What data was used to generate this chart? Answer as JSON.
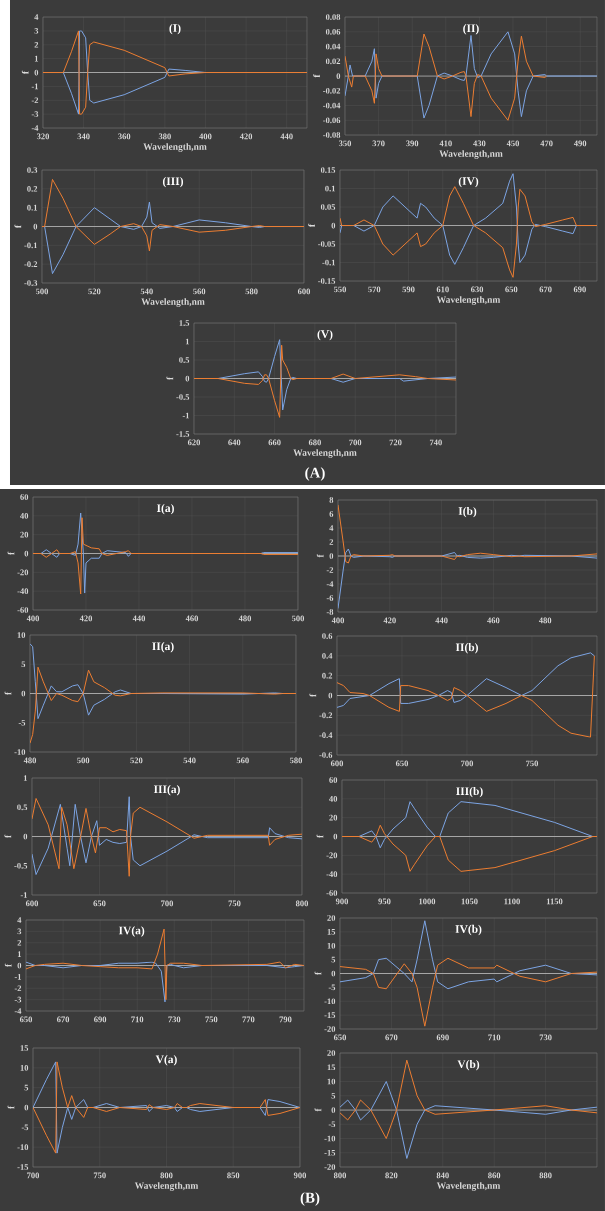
{
  "chart_data": [
    {
      "type": "line",
      "title": "(I)",
      "xlabel": "Wavelength,nm",
      "ylabel": "f",
      "xlim": [
        320,
        450
      ],
      "ylim": [
        -4,
        4
      ],
      "xticks": [
        320,
        340,
        360,
        380,
        400,
        420,
        440
      ],
      "yticks": [
        -4,
        -3,
        -2,
        -1,
        0,
        1,
        2,
        3,
        4
      ],
      "grid": true,
      "ref_lines": [
        {
          "axis": "y",
          "value": 0,
          "color": "#bfbfbf"
        }
      ],
      "series": [
        {
          "color": "#7ca5e4",
          "x": [
            320,
            330,
            334,
            337.5,
            338,
            339,
            341,
            342,
            343,
            345,
            360,
            380,
            382,
            390,
            400,
            450
          ],
          "values": [
            0,
            0,
            -1.5,
            -3,
            3,
            3,
            2.5,
            0,
            -2,
            -2.2,
            -1.6,
            -0.35,
            0.25,
            0.15,
            0,
            0
          ]
        },
        {
          "color": "#ed7d31",
          "x": [
            320,
            330,
            334,
            337.5,
            338,
            339,
            341,
            342,
            343,
            345,
            360,
            380,
            382,
            390,
            400,
            450
          ],
          "values": [
            0,
            0,
            1.5,
            3,
            -3,
            -3,
            -2.5,
            0,
            2,
            2.2,
            1.6,
            0.35,
            -0.25,
            -0.1,
            0,
            0
          ]
        }
      ]
    },
    {
      "type": "line",
      "title": "(II)",
      "xlabel": "Wavelength,nm",
      "ylabel": "f",
      "xlim": [
        350,
        500
      ],
      "ylim": [
        -0.08,
        0.08
      ],
      "xticks": [
        350,
        370,
        390,
        410,
        430,
        450,
        470,
        490
      ],
      "yticks": [
        -0.08,
        -0.06,
        -0.04,
        -0.02,
        0,
        0.02,
        0.04,
        0.06,
        0.08
      ],
      "grid": true,
      "ref_lines": [
        {
          "axis": "y",
          "value": 0,
          "color": "#bfbfbf"
        }
      ],
      "series": [
        {
          "color": "#7ca5e4",
          "x": [
            350,
            352,
            353,
            354.5,
            362,
            366,
            367.5,
            368.5,
            370,
            372,
            393,
            397,
            400,
            405,
            409,
            414,
            419,
            421,
            422,
            425,
            427,
            429,
            431,
            437,
            447,
            451,
            453,
            455,
            458,
            462,
            469,
            470,
            500
          ],
          "values": [
            -0.027,
            0,
            0.015,
            0,
            0,
            0.02,
            0.037,
            -0.03,
            -0.01,
            0,
            0,
            -0.057,
            -0.04,
            0,
            0.004,
            0,
            -0.005,
            -0.006,
            0,
            0.055,
            0.01,
            -0.002,
            0,
            0.03,
            0.06,
            0.03,
            -0.02,
            -0.055,
            -0.02,
            0,
            0.002,
            0,
            0
          ]
        },
        {
          "color": "#ed7d31",
          "x": [
            350,
            352,
            354,
            355,
            362,
            366,
            367.5,
            368.5,
            370,
            372,
            393,
            397,
            400,
            405,
            409,
            414,
            419,
            421,
            422,
            425,
            427,
            429,
            431,
            437,
            447,
            451,
            453,
            455,
            458,
            462,
            469,
            470
          ],
          "values": [
            0.027,
            0,
            -0.015,
            0,
            0,
            -0.02,
            -0.037,
            0.03,
            0.01,
            0,
            0,
            0.057,
            0.04,
            0,
            -0.004,
            0,
            0.005,
            0.006,
            0,
            -0.055,
            -0.01,
            0.002,
            0,
            -0.03,
            -0.06,
            -0.03,
            0.02,
            0.054,
            0.02,
            0,
            -0.002,
            0
          ]
        }
      ]
    },
    {
      "type": "line",
      "title": "(III)",
      "xlabel": "Wavelength,nm",
      "ylabel": "f",
      "xlim": [
        500,
        600
      ],
      "ylim": [
        -0.3,
        0.3
      ],
      "xticks": [
        500,
        520,
        540,
        560,
        580,
        600
      ],
      "yticks": [
        -0.3,
        -0.2,
        -0.1,
        0,
        0.1,
        0.2,
        0.3
      ],
      "grid": true,
      "ref_lines": [
        {
          "axis": "y",
          "value": 0,
          "color": "#bfbfbf"
        }
      ],
      "series": [
        {
          "color": "#7ca5e4",
          "x": [
            500,
            501,
            504,
            508,
            513,
            520,
            526,
            530,
            535,
            538,
            540,
            541,
            542,
            545,
            550,
            560,
            570,
            580,
            583,
            585,
            600
          ],
          "values": [
            0,
            0,
            -0.25,
            -0.15,
            0,
            0.1,
            0.04,
            0,
            -0.015,
            0,
            0.05,
            0.13,
            0.02,
            -0.01,
            0,
            0.035,
            0.02,
            0,
            -0.005,
            0,
            0
          ]
        },
        {
          "color": "#ed7d31",
          "x": [
            500,
            501,
            504,
            508,
            513,
            520,
            526,
            530,
            535,
            538,
            540,
            541,
            542,
            545,
            550,
            560,
            570,
            580,
            583,
            585,
            600
          ],
          "values": [
            0,
            0,
            0.25,
            0.15,
            0,
            -0.095,
            -0.04,
            0,
            0.015,
            0,
            -0.05,
            -0.13,
            -0.02,
            0.01,
            0,
            -0.03,
            -0.02,
            0,
            0.005,
            0,
            0
          ]
        }
      ]
    },
    {
      "type": "line",
      "title": "(IV)",
      "xlabel": "Wavelength,nm",
      "ylabel": "f",
      "xlim": [
        550,
        700
      ],
      "ylim": [
        -0.15,
        0.15
      ],
      "xticks": [
        550,
        570,
        590,
        610,
        630,
        650,
        670,
        690
      ],
      "yticks": [
        -0.15,
        -0.1,
        -0.05,
        0,
        0.05,
        0.1,
        0.15
      ],
      "grid": true,
      "ref_lines": [
        {
          "axis": "y",
          "value": 0,
          "color": "#bfbfbf"
        }
      ],
      "series": [
        {
          "color": "#7ca5e4",
          "x": [
            550,
            551,
            558,
            564,
            570,
            575,
            581,
            588,
            595,
            597,
            600,
            605,
            610,
            614,
            617,
            622,
            628,
            635,
            645,
            649,
            651,
            653,
            654,
            655,
            658,
            662,
            664,
            667,
            670,
            680,
            686,
            688,
            700
          ],
          "values": [
            -0.02,
            0,
            0,
            -0.015,
            0,
            0.05,
            0.08,
            0.05,
            0.02,
            0.06,
            0.05,
            0.02,
            0,
            -0.08,
            -0.105,
            -0.06,
            0,
            0.02,
            0.06,
            0.12,
            0.14,
            0.05,
            -0.05,
            -0.1,
            -0.08,
            -0.01,
            0.003,
            0,
            -0.003,
            -0.015,
            -0.022,
            0,
            0
          ]
        },
        {
          "color": "#ed7d31",
          "x": [
            550,
            551,
            558,
            564,
            570,
            575,
            581,
            588,
            595,
            597,
            600,
            605,
            610,
            614,
            617,
            622,
            628,
            635,
            645,
            649,
            651,
            653,
            654,
            655,
            658,
            662,
            664,
            667,
            670,
            680,
            686,
            688,
            700
          ],
          "values": [
            0.02,
            0,
            0,
            0.015,
            0,
            -0.05,
            -0.08,
            -0.05,
            -0.02,
            -0.057,
            -0.05,
            -0.02,
            0,
            0.08,
            0.105,
            0.06,
            0,
            -0.02,
            -0.06,
            -0.12,
            -0.14,
            -0.05,
            0.05,
            0.098,
            0.08,
            0.01,
            -0.003,
            0,
            0.003,
            0.015,
            0.022,
            0,
            0
          ]
        }
      ]
    },
    {
      "type": "line",
      "title": "(V)",
      "xlabel": "Wavelength,nm",
      "ylabel": "f",
      "xlim": [
        620,
        750
      ],
      "ylim": [
        -1.5,
        1.5
      ],
      "xticks": [
        620,
        640,
        660,
        680,
        700,
        720,
        740
      ],
      "yticks": [
        -1.5,
        -1,
        -0.5,
        0,
        0.5,
        1,
        1.5
      ],
      "grid": true,
      "ref_lines": [
        {
          "axis": "y",
          "value": 0,
          "color": "#bfbfbf"
        }
      ],
      "annotations": [
        "(A)"
      ],
      "series": [
        {
          "color": "#7ca5e4",
          "x": [
            620,
            632,
            645,
            652,
            654,
            655,
            656,
            657,
            660,
            662.5,
            664,
            666,
            668,
            669,
            671,
            688,
            694,
            700,
            722,
            724,
            736,
            750
          ],
          "values": [
            0,
            0,
            0.13,
            0.18,
            0.05,
            -0.08,
            -0.1,
            0,
            0.6,
            1.05,
            -0.85,
            -0.3,
            0,
            0.03,
            0,
            0,
            -0.1,
            0,
            0,
            -0.07,
            0,
            0.04
          ]
        },
        {
          "color": "#ed7d31",
          "x": [
            620,
            632,
            645,
            652,
            654,
            655,
            656,
            657,
            660,
            662.5,
            663.5,
            664,
            666,
            668,
            669,
            671,
            688,
            694,
            700,
            722,
            730,
            736,
            750
          ],
          "values": [
            0,
            0,
            -0.13,
            -0.16,
            -0.05,
            0.1,
            0.1,
            0,
            -0.6,
            -1.05,
            0.9,
            0.5,
            0.3,
            0,
            -0.03,
            0,
            0,
            0.12,
            0,
            0.1,
            0.05,
            0,
            -0.04
          ]
        }
      ]
    },
    {
      "type": "line",
      "title": "I(a)",
      "ylabel": "f",
      "xlim": [
        400,
        500
      ],
      "ylim": [
        -60,
        60
      ],
      "xticks": [
        400,
        420,
        440,
        460,
        480,
        500
      ],
      "yticks": [
        -60,
        -40,
        -20,
        0,
        20,
        40,
        60
      ],
      "grid": true,
      "ref_lines": [
        {
          "axis": "y",
          "value": 0,
          "color": "#bfbfbf"
        }
      ],
      "series": [
        {
          "color": "#7ca5e4",
          "x": [
            400,
            403,
            405,
            407,
            409,
            410,
            414,
            416,
            417,
            418,
            419,
            419.5,
            420,
            422,
            425,
            426,
            428,
            435,
            436,
            437,
            445,
            486,
            487,
            500
          ],
          "values": [
            0,
            0,
            4,
            0,
            -4,
            0,
            0,
            -2,
            10,
            43,
            0,
            -42,
            -10,
            -5,
            -5,
            0,
            3,
            1,
            -3,
            0,
            0,
            0,
            1,
            1
          ]
        },
        {
          "color": "#ed7d31",
          "x": [
            400,
            403,
            405,
            407,
            409,
            410,
            414,
            416,
            417,
            418,
            418.5,
            419,
            422,
            425,
            426,
            428,
            435,
            436,
            437,
            445,
            486,
            487,
            500
          ],
          "values": [
            0,
            0,
            -4,
            0,
            4,
            0,
            0,
            2,
            -10,
            -43,
            38,
            10,
            6,
            5,
            0,
            -2,
            2,
            3,
            0,
            0,
            0,
            -1,
            -1
          ]
        }
      ]
    },
    {
      "type": "line",
      "title": "I(b)",
      "ylabel": "f",
      "xlim": [
        400,
        500
      ],
      "ylim": [
        -8,
        8
      ],
      "xticks": [
        400,
        420,
        440,
        460,
        480
      ],
      "yticks": [
        -8,
        -6,
        -4,
        -2,
        0,
        2,
        4,
        6,
        8
      ],
      "grid": true,
      "ref_lines": [
        {
          "axis": "y",
          "value": 0,
          "color": "#bfbfbf"
        }
      ],
      "series": [
        {
          "color": "#7ca5e4",
          "x": [
            400,
            402,
            403,
            404,
            405,
            406,
            410,
            420,
            421,
            422,
            440,
            445,
            446,
            447,
            450,
            455,
            460,
            467,
            470,
            472,
            490,
            500
          ],
          "values": [
            -7.5,
            -2,
            0.5,
            1,
            0,
            -0.2,
            0,
            -0.1,
            -0.2,
            0,
            0,
            0.5,
            0,
            0.1,
            -0.2,
            -0.3,
            -0.2,
            0.1,
            0,
            0.1,
            0,
            -0.3
          ]
        },
        {
          "color": "#ed7d31",
          "x": [
            400,
            402,
            403,
            404,
            405,
            406,
            410,
            420,
            421,
            422,
            440,
            445,
            446,
            447,
            450,
            455,
            460,
            467,
            470,
            472,
            490,
            500
          ],
          "values": [
            7.3,
            2,
            -0.8,
            -1,
            0,
            0.2,
            0,
            0.1,
            0.2,
            0,
            0,
            -0.5,
            0,
            -0.1,
            0.2,
            0.4,
            0.2,
            -0.1,
            0,
            -0.1,
            0,
            0.3
          ]
        }
      ]
    },
    {
      "type": "line",
      "title": "II(a)",
      "ylabel": "f",
      "xlim": [
        480,
        580
      ],
      "ylim": [
        -10,
        10
      ],
      "xticks": [
        480,
        500,
        520,
        540,
        560,
        580
      ],
      "yticks": [
        -10,
        -5,
        0,
        5,
        10
      ],
      "grid": true,
      "ref_lines": [
        {
          "axis": "y",
          "value": 0,
          "color": "#bfbfbf"
        }
      ],
      "series": [
        {
          "color": "#7ca5e4",
          "x": [
            480,
            481,
            482,
            483,
            485,
            488,
            490,
            492,
            496,
            498,
            500,
            502,
            504,
            508,
            512,
            514,
            518,
            530,
            560,
            572,
            575,
            580
          ],
          "values": [
            8.5,
            8,
            2,
            -4.3,
            -2,
            1.3,
            0.3,
            0.3,
            1.3,
            1.5,
            0,
            -3.7,
            -2,
            -1,
            0.3,
            0.6,
            0,
            0,
            -0.1,
            0.1,
            0,
            0
          ]
        },
        {
          "color": "#ed7d31",
          "x": [
            480,
            481,
            482,
            483,
            485,
            488,
            490,
            492,
            496,
            498,
            500,
            502,
            504,
            508,
            512,
            514,
            518,
            530,
            560,
            572,
            575,
            580
          ],
          "values": [
            -8.5,
            -7,
            -3,
            4.5,
            2,
            -1.2,
            0,
            -0.3,
            -1.2,
            -1.4,
            0,
            4,
            2,
            1,
            -0.3,
            -0.4,
            0,
            0.1,
            0.1,
            -0.1,
            0,
            0
          ]
        }
      ]
    },
    {
      "type": "line",
      "title": "II(b)",
      "ylabel": "f",
      "xlim": [
        600,
        800
      ],
      "ylim": [
        -0.6,
        0.6
      ],
      "xticks": [
        600,
        650,
        700,
        750
      ],
      "yticks": [
        -0.6,
        -0.4,
        -0.2,
        0,
        0.2,
        0.4,
        0.6
      ],
      "grid": true,
      "ref_lines": [
        {
          "axis": "y",
          "value": 0,
          "color": "#bfbfbf"
        }
      ],
      "series": [
        {
          "color": "#7ca5e4",
          "x": [
            600,
            605,
            610,
            620,
            625,
            640,
            648,
            649,
            655,
            670,
            678,
            685,
            688,
            690,
            695,
            700,
            715,
            730,
            742,
            750,
            770,
            780,
            795,
            798
          ],
          "values": [
            -0.12,
            -0.1,
            -0.03,
            -0.01,
            0,
            0.12,
            0.17,
            -0.08,
            -0.08,
            -0.04,
            0,
            0.05,
            0.03,
            -0.07,
            -0.05,
            0,
            0.17,
            0.08,
            0,
            0.05,
            0.3,
            0.38,
            0.43,
            0.4
          ]
        },
        {
          "color": "#ed7d31",
          "x": [
            600,
            605,
            610,
            620,
            625,
            640,
            648,
            649,
            655,
            670,
            678,
            685,
            688,
            690,
            695,
            700,
            715,
            730,
            742,
            750,
            770,
            780,
            795,
            798
          ],
          "values": [
            0.13,
            0.1,
            0.03,
            0.02,
            0,
            -0.12,
            -0.16,
            0.1,
            0.1,
            0.05,
            0,
            -0.05,
            -0.03,
            0.08,
            0.05,
            0,
            -0.16,
            -0.08,
            0,
            -0.05,
            -0.3,
            -0.38,
            -0.42,
            0.4
          ]
        }
      ]
    },
    {
      "type": "line",
      "title": "III(a)",
      "ylabel": "f",
      "xlim": [
        600,
        800
      ],
      "ylim": [
        -1,
        1
      ],
      "xticks": [
        600,
        650,
        700,
        750,
        800
      ],
      "yticks": [
        -1,
        -0.5,
        0,
        0.5,
        1
      ],
      "grid": true,
      "ref_lines": [
        {
          "axis": "y",
          "value": 0,
          "color": "#bfbfbf"
        }
      ],
      "series": [
        {
          "color": "#7ca5e4",
          "x": [
            600,
            603,
            612,
            621,
            626,
            628,
            632,
            636,
            640,
            644,
            648,
            650,
            655,
            660,
            665,
            670,
            672,
            673,
            675,
            680,
            700,
            718,
            720,
            730,
            775,
            776,
            780,
            790,
            800
          ],
          "values": [
            -0.3,
            -0.65,
            -0.2,
            0.55,
            -0.2,
            -0.5,
            0.55,
            0,
            -0.45,
            0,
            0.27,
            -0.15,
            -0.05,
            -0.1,
            -0.12,
            -0.1,
            0.68,
            0,
            -0.4,
            -0.5,
            -0.25,
            0,
            0.03,
            -0.02,
            -0.02,
            0.15,
            0.05,
            -0.02,
            -0.04
          ]
        },
        {
          "color": "#ed7d31",
          "x": [
            600,
            603,
            612,
            620,
            622,
            626,
            631,
            636,
            640,
            644,
            647,
            650,
            655,
            660,
            665,
            670,
            672,
            673,
            675,
            680,
            700,
            718,
            720,
            730,
            775,
            776,
            780,
            790,
            800
          ],
          "values": [
            0.3,
            0.65,
            0.2,
            -0.55,
            0.5,
            0.2,
            -0.55,
            0,
            0.48,
            0,
            -0.28,
            0.15,
            0.15,
            0.08,
            0.12,
            0.1,
            -0.68,
            0,
            0.4,
            0.5,
            0.25,
            0,
            -0.03,
            0.02,
            0.02,
            -0.15,
            -0.05,
            0.02,
            0.04
          ]
        }
      ]
    },
    {
      "type": "line",
      "title": "III(b)",
      "ylabel": "f",
      "xlim": [
        900,
        1200
      ],
      "ylim": [
        -60,
        60
      ],
      "xticks": [
        900,
        950,
        1000,
        1050,
        1100,
        1150
      ],
      "yticks": [
        -60,
        -40,
        -20,
        0,
        20,
        40,
        60
      ],
      "grid": true,
      "ref_lines": [
        {
          "axis": "y",
          "value": 0,
          "color": "#bfbfbf"
        }
      ],
      "series": [
        {
          "color": "#7ca5e4",
          "x": [
            900,
            920,
            935,
            940,
            945,
            950,
            960,
            975,
            980,
            985,
            1000,
            1010,
            1015,
            1025,
            1040,
            1080,
            1150,
            1195,
            1200
          ],
          "values": [
            0,
            0,
            6,
            0,
            -12,
            -3,
            8,
            20,
            37,
            30,
            10,
            0,
            0,
            25,
            37,
            33,
            15,
            0,
            0
          ]
        },
        {
          "color": "#ed7d31",
          "x": [
            900,
            920,
            935,
            940,
            945,
            950,
            960,
            975,
            980,
            985,
            1000,
            1010,
            1015,
            1025,
            1040,
            1080,
            1150,
            1195,
            1200
          ],
          "values": [
            0,
            0,
            -6,
            0,
            12,
            3,
            -8,
            -20,
            -37,
            -30,
            -10,
            0,
            0,
            -25,
            -37,
            -33,
            -15,
            0,
            0
          ]
        }
      ]
    },
    {
      "type": "line",
      "title": "IV(a)",
      "ylabel": "f",
      "xlim": [
        650,
        800
      ],
      "ylim": [
        -4,
        4
      ],
      "xticks": [
        650,
        670,
        690,
        710,
        730,
        750,
        770,
        790
      ],
      "yticks": [
        -4,
        -3,
        -2,
        -1,
        0,
        1,
        2,
        3,
        4
      ],
      "grid": true,
      "ref_lines": [
        {
          "axis": "y",
          "value": 0,
          "color": "#bfbfbf"
        }
      ],
      "series": [
        {
          "color": "#7ca5e4",
          "x": [
            650,
            655,
            660,
            670,
            680,
            690,
            700,
            710,
            718,
            720,
            723,
            725,
            726,
            728,
            730,
            735,
            745,
            780,
            790,
            795,
            800
          ],
          "values": [
            0.3,
            0,
            0,
            -0.2,
            0,
            0,
            0.2,
            0.2,
            0.3,
            0.2,
            -0.5,
            -3.2,
            0,
            0.1,
            0,
            -0.2,
            0,
            0,
            -0.2,
            -0.1,
            0
          ]
        },
        {
          "color": "#ed7d31",
          "x": [
            650,
            655,
            660,
            670,
            680,
            690,
            700,
            710,
            718,
            721,
            724.5,
            725.5,
            726,
            728,
            735,
            745,
            780,
            787,
            790,
            795,
            800
          ],
          "values": [
            -0.3,
            0,
            0.1,
            0.2,
            0,
            -0.1,
            -0.2,
            -0.2,
            -0.3,
            1,
            3.2,
            -3,
            0,
            0.2,
            0.2,
            0,
            0.1,
            0.3,
            -0.2,
            0.1,
            0
          ]
        }
      ]
    },
    {
      "type": "line",
      "title": "IV(b)",
      "ylabel": "f",
      "xlim": [
        650,
        750
      ],
      "ylim": [
        -20,
        20
      ],
      "xticks": [
        650,
        670,
        690,
        710,
        730
      ],
      "yticks": [
        -20,
        -15,
        -10,
        -5,
        0,
        5,
        10,
        15,
        20
      ],
      "grid": true,
      "ref_lines": [
        {
          "axis": "y",
          "value": 0,
          "color": "#bfbfbf"
        }
      ],
      "series": [
        {
          "color": "#7ca5e4",
          "x": [
            650,
            660,
            663,
            665,
            668,
            675,
            678,
            680,
            683,
            686,
            688,
            692,
            700,
            710,
            711,
            720,
            730,
            740,
            750
          ],
          "values": [
            -3,
            -1.5,
            0,
            5,
            5.5,
            0,
            -3,
            5,
            19,
            5,
            -3,
            -5.5,
            -3,
            -2,
            -3,
            1,
            3,
            0,
            -0.5
          ]
        },
        {
          "color": "#ed7d31",
          "x": [
            650,
            660,
            663,
            665,
            668,
            675,
            678,
            680,
            683,
            686,
            688,
            692,
            700,
            710,
            711,
            720,
            730,
            740,
            750
          ],
          "values": [
            2.5,
            1.5,
            0,
            -5,
            -5.5,
            3.5,
            0,
            -5,
            -19,
            -5,
            3,
            5.5,
            2,
            2,
            3,
            -1,
            -3,
            0,
            0.5
          ]
        }
      ]
    },
    {
      "type": "line",
      "title": "V(a)",
      "xlabel": "Wavelength,nm",
      "ylabel": "f",
      "xlim": [
        700,
        900
      ],
      "ylim": [
        -15,
        15
      ],
      "xticks": [
        700,
        750,
        800,
        850,
        900
      ],
      "yticks": [
        -15,
        -10,
        -5,
        0,
        5,
        10,
        15
      ],
      "grid": true,
      "ref_lines": [
        {
          "axis": "y",
          "value": 0,
          "color": "#bfbfbf"
        }
      ],
      "annotations": [
        "(B)"
      ],
      "series": [
        {
          "color": "#7ca5e4",
          "x": [
            700,
            710,
            717,
            718,
            722,
            726,
            729,
            732,
            738,
            741,
            745,
            755,
            765,
            785,
            787,
            790,
            800,
            806,
            808,
            812,
            815,
            818,
            825,
            850,
            870,
            874,
            876,
            885,
            900
          ],
          "values": [
            0,
            7,
            11.5,
            -11.5,
            -5,
            0,
            -3,
            0,
            2,
            0,
            0,
            1,
            0,
            0.5,
            -1,
            0,
            0.5,
            0,
            -1,
            0,
            0,
            -0.5,
            -1,
            0,
            0,
            -2,
            2,
            1.5,
            0
          ]
        },
        {
          "color": "#ed7d31",
          "x": [
            700,
            710,
            717,
            718,
            722,
            726,
            729,
            732,
            738,
            741,
            745,
            755,
            765,
            785,
            787,
            790,
            800,
            806,
            808,
            812,
            815,
            818,
            825,
            850,
            870,
            874,
            876,
            885,
            900
          ],
          "values": [
            0,
            -7,
            -11.5,
            11.5,
            5,
            0,
            3,
            0,
            -2.5,
            0,
            0,
            -1,
            0,
            -0.5,
            0.7,
            0,
            -0.5,
            0,
            1,
            0,
            0,
            0.5,
            1,
            0,
            0,
            2,
            -2,
            -1.5,
            0
          ]
        }
      ]
    },
    {
      "type": "line",
      "title": "V(b)",
      "xlabel": "Wavelength,nm",
      "ylabel": "f",
      "xlim": [
        800,
        900
      ],
      "ylim": [
        -20,
        20
      ],
      "xticks": [
        800,
        820,
        840,
        860,
        880
      ],
      "yticks": [
        -20,
        -15,
        -10,
        -5,
        0,
        5,
        10,
        15,
        20
      ],
      "grid": true,
      "ref_lines": [
        {
          "axis": "y",
          "value": 0,
          "color": "#bfbfbf"
        }
      ],
      "series": [
        {
          "color": "#7ca5e4",
          "x": [
            800,
            803,
            806,
            808,
            812,
            818,
            822,
            826,
            830,
            833,
            837,
            860,
            880,
            890,
            900
          ],
          "values": [
            1,
            3.5,
            0,
            -3.5,
            0,
            10,
            0,
            -17,
            -5,
            0,
            1.5,
            0,
            -1.5,
            0,
            1
          ]
        },
        {
          "color": "#ed7d31",
          "x": [
            800,
            803,
            806,
            808,
            812,
            818,
            822,
            826,
            830,
            833,
            837,
            860,
            880,
            890,
            900
          ],
          "values": [
            -1,
            -3.5,
            0,
            3.5,
            0,
            -10,
            0,
            17.5,
            5,
            0,
            -1.5,
            0,
            1.5,
            0,
            -1
          ]
        }
      ]
    }
  ]
}
